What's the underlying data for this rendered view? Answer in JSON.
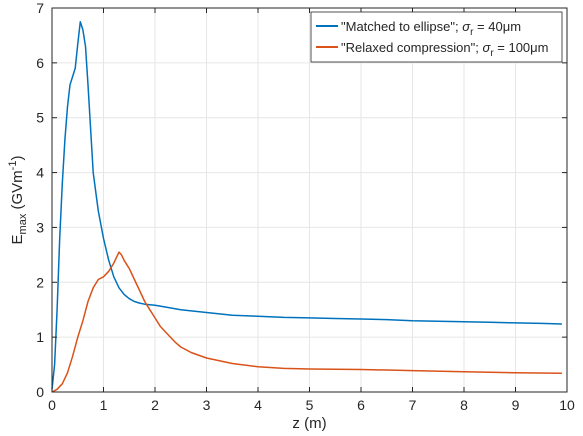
{
  "chart_data": {
    "type": "line",
    "xlabel": "z (m)",
    "ylabel": {
      "main": "E",
      "sub": "max",
      "unit_open": "(GVm",
      "unit_sup": "-1",
      "unit_close": ")"
    },
    "xlim": [
      0,
      10
    ],
    "ylim": [
      0,
      7
    ],
    "xticks": [
      "0",
      "1",
      "2",
      "3",
      "4",
      "5",
      "6",
      "7",
      "8",
      "9",
      "10"
    ],
    "yticks": [
      "0",
      "1",
      "2",
      "3",
      "4",
      "5",
      "6",
      "7"
    ],
    "grid": true,
    "legend_position": "top-right",
    "series": [
      {
        "name": "\"Matched to ellipse\"; σr = 40μm",
        "legend": {
          "prefix": "\"Matched to ellipse\"; ",
          "sym": "σ",
          "sub": "r",
          "suffix": " = 40μm"
        },
        "color": "#0072BD",
        "x": [
          0.0,
          0.05,
          0.1,
          0.15,
          0.2,
          0.25,
          0.3,
          0.35,
          0.4,
          0.45,
          0.5,
          0.55,
          0.6,
          0.65,
          0.7,
          0.75,
          0.8,
          0.9,
          1.0,
          1.1,
          1.2,
          1.3,
          1.4,
          1.5,
          1.6,
          1.7,
          1.8,
          2.0,
          2.2,
          2.5,
          3.0,
          3.5,
          4.0,
          4.5,
          5.0,
          5.5,
          6.0,
          6.5,
          7.0,
          7.5,
          8.0,
          8.5,
          9.0,
          9.5,
          9.9
        ],
        "y": [
          0.05,
          0.5,
          1.5,
          2.8,
          3.8,
          4.6,
          5.2,
          5.6,
          5.75,
          5.9,
          6.35,
          6.75,
          6.6,
          6.3,
          5.6,
          4.8,
          4.0,
          3.3,
          2.8,
          2.4,
          2.1,
          1.9,
          1.78,
          1.7,
          1.65,
          1.62,
          1.6,
          1.58,
          1.55,
          1.5,
          1.45,
          1.4,
          1.38,
          1.36,
          1.35,
          1.34,
          1.33,
          1.32,
          1.3,
          1.29,
          1.28,
          1.27,
          1.26,
          1.25,
          1.24
        ]
      },
      {
        "name": "\"Relaxed compression\"; σr = 100μm",
        "legend": {
          "prefix": "\"Relaxed compression\"; ",
          "sym": "σ",
          "sub": "r",
          "suffix": " = 100μm"
        },
        "color": "#D95319",
        "x": [
          0.0,
          0.1,
          0.2,
          0.3,
          0.4,
          0.5,
          0.6,
          0.7,
          0.8,
          0.9,
          1.0,
          1.1,
          1.2,
          1.3,
          1.35,
          1.4,
          1.5,
          1.6,
          1.7,
          1.8,
          1.9,
          2.0,
          2.1,
          2.2,
          2.3,
          2.4,
          2.5,
          2.7,
          3.0,
          3.5,
          4.0,
          4.5,
          5.0,
          6.0,
          7.0,
          8.0,
          9.0,
          9.9
        ],
        "y": [
          0.0,
          0.05,
          0.15,
          0.35,
          0.65,
          1.0,
          1.3,
          1.65,
          1.9,
          2.05,
          2.1,
          2.2,
          2.35,
          2.55,
          2.5,
          2.4,
          2.25,
          2.05,
          1.85,
          1.65,
          1.5,
          1.35,
          1.2,
          1.1,
          1.0,
          0.9,
          0.82,
          0.72,
          0.62,
          0.52,
          0.46,
          0.43,
          0.42,
          0.41,
          0.39,
          0.37,
          0.35,
          0.34
        ]
      }
    ]
  }
}
